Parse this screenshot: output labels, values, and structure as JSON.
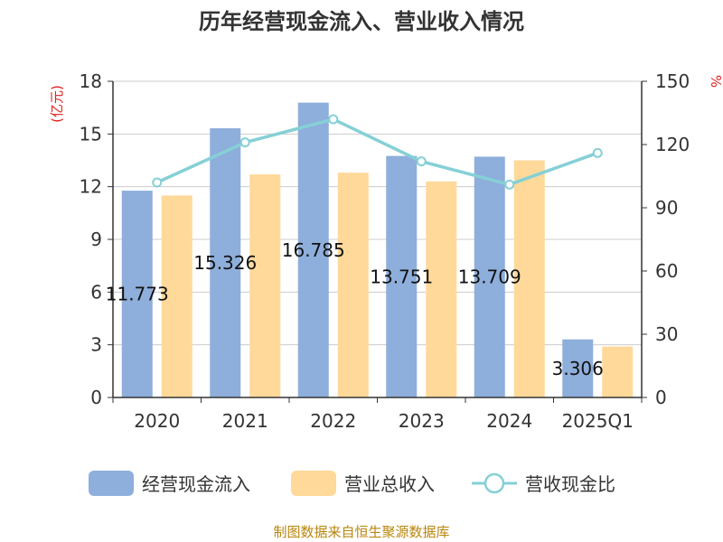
{
  "chart_data": {
    "type": "bar",
    "title": "历年经营现金流入、营业收入情况",
    "categories": [
      "2020",
      "2021",
      "2022",
      "2023",
      "2024",
      "2025Q1"
    ],
    "left_axis": {
      "unit": "(亿元)",
      "ylim": [
        0,
        18
      ],
      "ticks": [
        "0",
        "3",
        "6",
        "9",
        "12",
        "15",
        "18"
      ]
    },
    "right_axis": {
      "unit": "%",
      "ylim": [
        0,
        150
      ],
      "ticks": [
        "0",
        "30",
        "60",
        "90",
        "120",
        "150"
      ]
    },
    "series": [
      {
        "name": "经营现金流入",
        "type": "bar",
        "axis": "left",
        "color": "#8eaedb",
        "values": [
          11.773,
          15.326,
          16.785,
          13.751,
          13.709,
          3.306
        ],
        "labels": [
          "11.773",
          "15.326",
          "16.785",
          "13.751",
          "13.709",
          "3.306"
        ]
      },
      {
        "name": "营业总收入",
        "type": "bar",
        "axis": "left",
        "color": "#ffd99a",
        "values": [
          11.5,
          12.7,
          12.8,
          12.3,
          13.5,
          2.9
        ]
      },
      {
        "name": "营收现金比",
        "type": "line",
        "axis": "right",
        "color": "#85d0d6",
        "values": [
          102,
          121,
          132,
          112,
          101,
          116
        ]
      }
    ],
    "grid": true,
    "legend_position": "bottom"
  },
  "source": "制图数据来自恒生聚源数据库"
}
